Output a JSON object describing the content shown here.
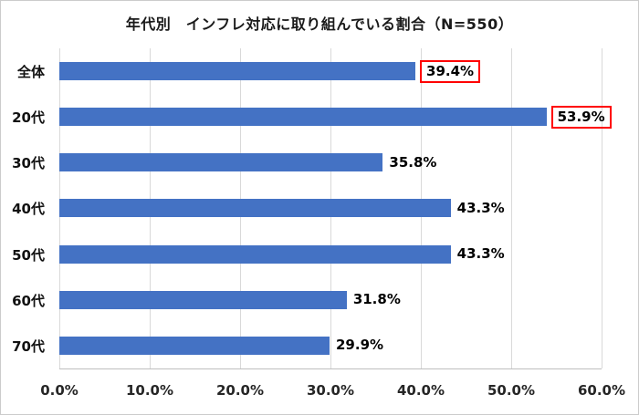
{
  "chart_data": {
    "type": "bar",
    "orientation": "horizontal",
    "title": "年代別　インフレ対応に取り組んでいる割合（N=550）",
    "categories": [
      "全体",
      "20代",
      "30代",
      "40代",
      "50代",
      "60代",
      "70代"
    ],
    "values": [
      39.4,
      53.9,
      35.8,
      43.3,
      43.3,
      31.8,
      29.9
    ],
    "labels": [
      "39.4%",
      "53.9%",
      "35.8%",
      "43.3%",
      "43.3%",
      "31.8%",
      "29.9%"
    ],
    "highlighted_indexes": [
      0,
      1
    ],
    "x_ticks": [
      "0.0%",
      "10.0%",
      "20.0%",
      "30.0%",
      "40.0%",
      "50.0%",
      "60.0%"
    ],
    "xlim": [
      0,
      60
    ],
    "grid": true,
    "legend": false,
    "bar_color": "#4472C4",
    "highlight_box_color": "#ff0000"
  }
}
